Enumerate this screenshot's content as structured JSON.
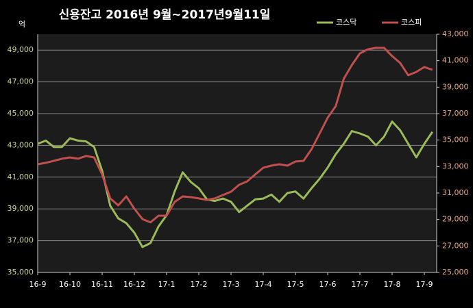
{
  "chart_data": {
    "type": "line",
    "title": "신용잔고 2016년 9월~2017년9월11일",
    "y_label": "억",
    "categories": [
      "16-9",
      null,
      null,
      null,
      "16-10",
      null,
      null,
      null,
      "16-11",
      null,
      null,
      null,
      "16-12",
      null,
      null,
      null,
      "17-1",
      null,
      null,
      null,
      "17-2",
      null,
      null,
      null,
      "17-3",
      null,
      null,
      null,
      "17-4",
      null,
      null,
      null,
      "17-5",
      null,
      null,
      null,
      "17-6",
      null,
      null,
      null,
      "17-7",
      null,
      null,
      null,
      "17-8",
      null,
      null,
      null,
      "17-9",
      null
    ],
    "series": [
      {
        "name": "코스닥",
        "color": "#9bbb59",
        "axis": "y",
        "values": [
          43100,
          43300,
          42900,
          42900,
          43450,
          43300,
          43250,
          42900,
          41400,
          39200,
          38400,
          38100,
          37500,
          36600,
          36850,
          37900,
          38600,
          40100,
          41300,
          40700,
          40300,
          39600,
          39500,
          39650,
          39450,
          38800,
          39200,
          39600,
          39650,
          39900,
          39450,
          40000,
          40100,
          39650,
          40300,
          40900,
          41600,
          42450,
          43100,
          43900,
          43750,
          43550,
          43000,
          43550,
          44500,
          43950,
          43100,
          42250,
          43100,
          43850
        ]
      },
      {
        "name": "코스피",
        "color": "#c0504d",
        "axis": "y2",
        "values": [
          33170,
          33280,
          33430,
          33590,
          33690,
          33590,
          33800,
          33690,
          32400,
          30590,
          30070,
          30740,
          29810,
          29030,
          28780,
          29290,
          29290,
          30330,
          30740,
          30690,
          30590,
          30480,
          30590,
          30850,
          31100,
          31620,
          31880,
          32400,
          32910,
          33070,
          33170,
          33070,
          33380,
          33430,
          34310,
          35500,
          36690,
          37570,
          39640,
          40670,
          41550,
          41860,
          41970,
          41970,
          41350,
          40830,
          39900,
          40150,
          40520,
          40310
        ]
      }
    ],
    "ylim": [
      35000,
      50000
    ],
    "yticks": [
      {
        "value": 35000,
        "label": "35,000"
      },
      {
        "value": 37000,
        "label": "37,000"
      },
      {
        "value": 39000,
        "label": "39,000"
      },
      {
        "value": 41000,
        "label": "41,000"
      },
      {
        "value": 43000,
        "label": "43,000"
      },
      {
        "value": 45000,
        "label": "45,000"
      },
      {
        "value": 47000,
        "label": "47,000"
      },
      {
        "value": 49000,
        "label": "49,000"
      }
    ],
    "y2lim": [
      25000,
      43000
    ],
    "y2ticks": [
      {
        "value": 25000,
        "label": "25,000"
      },
      {
        "value": 27000,
        "label": "27,000"
      },
      {
        "value": 29000,
        "label": "29,000"
      },
      {
        "value": 31000,
        "label": "31,000"
      },
      {
        "value": 33000,
        "label": "33,000"
      },
      {
        "value": 35000,
        "label": "35,000"
      },
      {
        "value": 37000,
        "label": "37,000"
      },
      {
        "value": 39000,
        "label": "39,000"
      },
      {
        "value": 41000,
        "label": "41,000"
      },
      {
        "value": 43000,
        "label": "43,000"
      }
    ],
    "grid": true,
    "legend": "top-right"
  }
}
